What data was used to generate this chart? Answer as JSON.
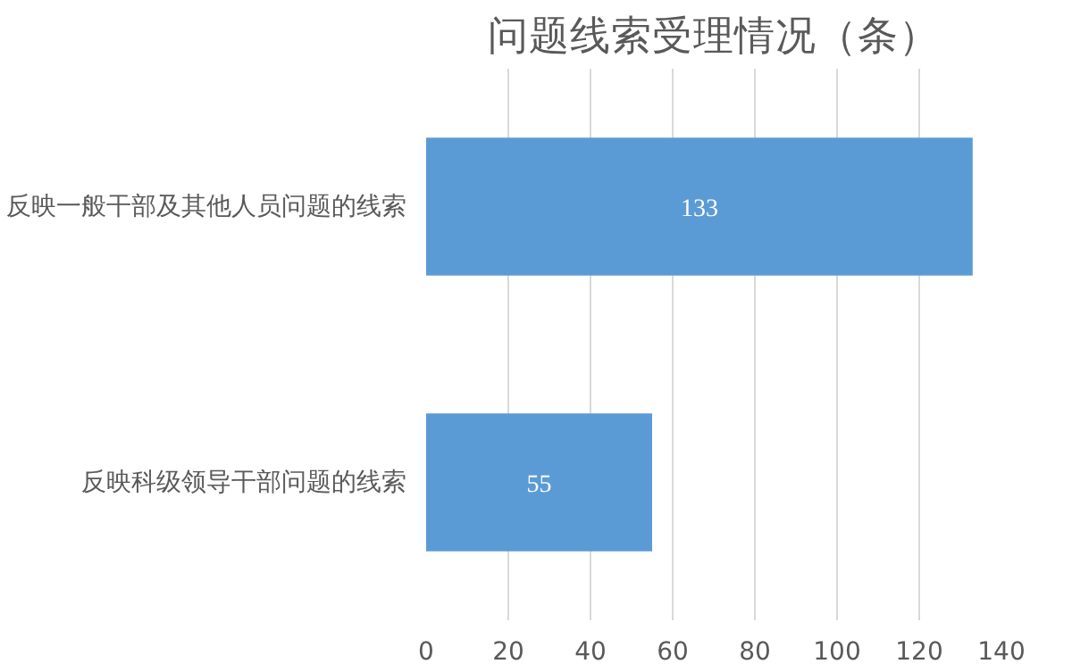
{
  "chart_data": {
    "type": "bar",
    "orientation": "horizontal",
    "title": "问题线索受理情况（条）",
    "categories": [
      "反映一般干部及其他人员问题的线索",
      "反映科级领导干部问题的线索"
    ],
    "values": [
      133,
      55
    ],
    "color": "#5b9bd5",
    "xlim": [
      0,
      140
    ],
    "xticks": [
      0,
      20,
      40,
      60,
      80,
      100,
      120,
      140
    ],
    "grid": "x",
    "data_labels": true
  }
}
